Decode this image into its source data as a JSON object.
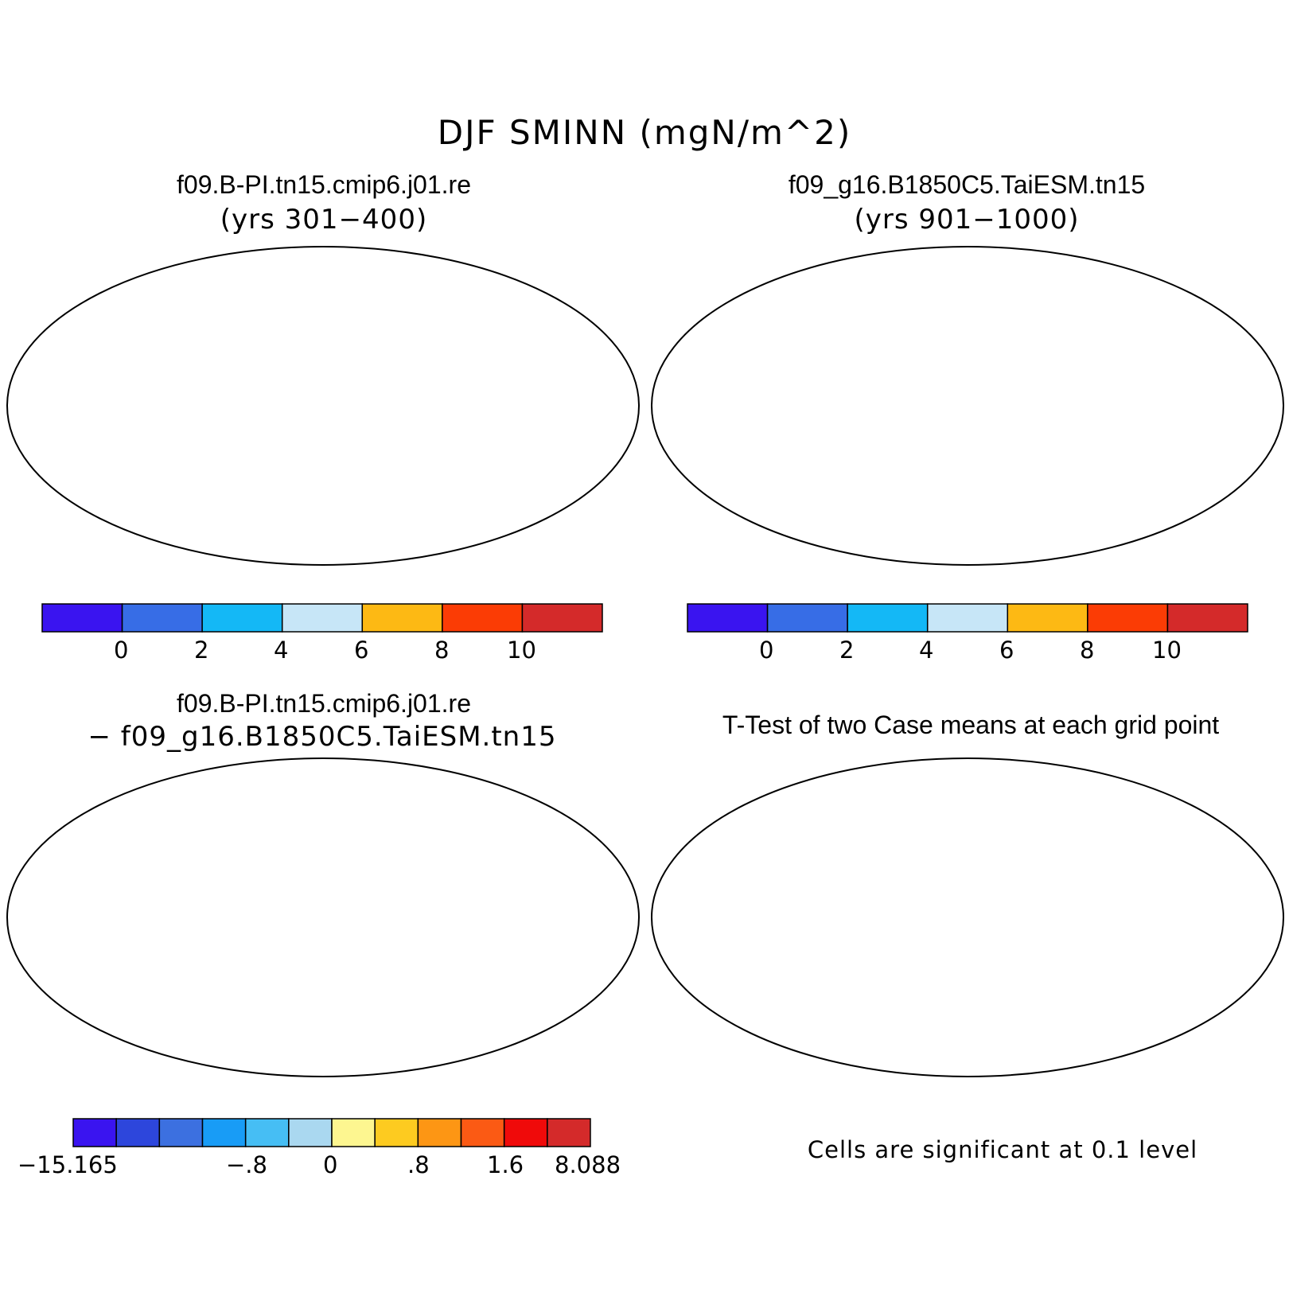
{
  "figure": {
    "title": "DJF SMINN (mgN/m^2)"
  },
  "panels": {
    "top_left": {
      "title": "f09.B-PI.tn15.cmip6.j01.re",
      "subtitle": "(yrs 301−400)"
    },
    "top_right": {
      "title": "f09_g16.B1850C5.TaiESM.tn15",
      "subtitle": "(yrs 901−1000)"
    },
    "bottom_left": {
      "title": "f09.B-PI.tn15.cmip6.j01.re",
      "subtitle": "− f09_g16.B1850C5.TaiESM.tn15"
    },
    "bottom_right": {
      "title": "T-Test of two Case means at each grid point",
      "note": "Cells are significant at 0.1 level"
    }
  },
  "colorbars": {
    "absolute": {
      "colors": [
        "#3a14f0",
        "#376de6",
        "#14b8f6",
        "#c7e6f7",
        "#fdb914",
        "#fb3c05",
        "#d42a2a"
      ],
      "labels": [
        "0",
        "2",
        "4",
        "6",
        "8",
        "10"
      ]
    },
    "difference": {
      "colors": [
        "#3a14f0",
        "#2d46dc",
        "#3c70e0",
        "#189cf6",
        "#46bef4",
        "#aad8f0",
        "#fdf690",
        "#fdcb20",
        "#fd9614",
        "#fb5a14",
        "#f00a0a",
        "#d42a2a"
      ],
      "labels": [
        "−15.165",
        "−.8",
        "0",
        ".8",
        "1.6",
        "8.088"
      ]
    },
    "significance_color": "#ff0000",
    "land_outline_color": "#000000"
  }
}
